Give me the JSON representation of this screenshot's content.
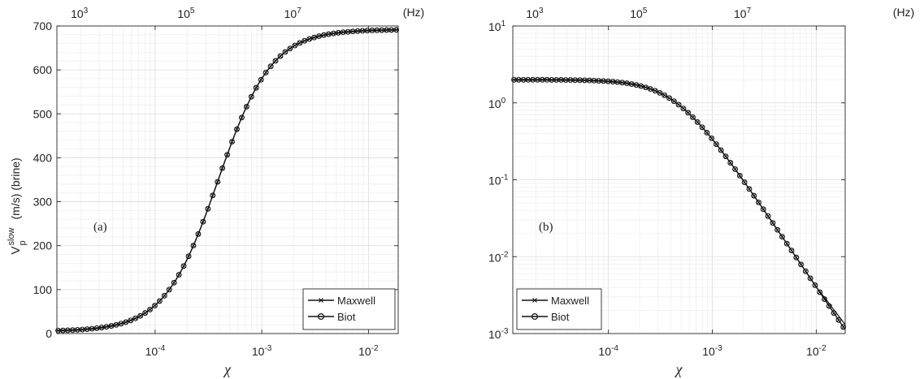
{
  "chart_data": [
    {
      "type": "line",
      "panel_label": "(a)",
      "top_axis_unit": "(Hz)",
      "top_ticks": [
        {
          "base": "10",
          "exp": "3",
          "value": 1.95e-05
        },
        {
          "base": "10",
          "exp": "5",
          "value": 0.000195
        },
        {
          "base": "10",
          "exp": "7",
          "value": 0.00195
        }
      ],
      "xlabel": "χ",
      "x_scale": "log",
      "xlim": [
        1.2e-05,
        0.019
      ],
      "x_ticks": [
        {
          "base": "10",
          "exp": "-4",
          "value": 0.0001
        },
        {
          "base": "10",
          "exp": "-3",
          "value": 0.001
        },
        {
          "base": "10",
          "exp": "-2",
          "value": 0.01
        }
      ],
      "ylabel": {
        "main": "V",
        "sup": "slow",
        "sub": "p",
        "rest": "(m/s) (brine)"
      },
      "y_scale": "linear",
      "ylim": [
        0,
        700
      ],
      "y_ticks": [
        "0",
        "100",
        "200",
        "300",
        "400",
        "500",
        "600",
        "700"
      ],
      "grid": true,
      "legend_placement": "bottom-right",
      "curve_model": {
        "kind": "sigmoid",
        "low": 5,
        "high": 692,
        "center_log10_x": -3.41,
        "width": 0.25
      },
      "series": [
        {
          "name": "Maxwell",
          "marker": "x"
        },
        {
          "name": "Biot",
          "marker": "o"
        }
      ]
    },
    {
      "type": "line",
      "panel_label": "(b)",
      "top_axis_unit": "(Hz)",
      "top_ticks": [
        {
          "base": "10",
          "exp": "3",
          "value": 1.95e-05
        },
        {
          "base": "10",
          "exp": "5",
          "value": 0.000195
        },
        {
          "base": "10",
          "exp": "7",
          "value": 0.00195
        }
      ],
      "xlabel": "χ",
      "x_scale": "log",
      "xlim": [
        1.2e-05,
        0.019
      ],
      "x_ticks": [
        {
          "base": "10",
          "exp": "-4",
          "value": 0.0001
        },
        {
          "base": "10",
          "exp": "-3",
          "value": 0.001
        },
        {
          "base": "10",
          "exp": "-2",
          "value": 0.01
        }
      ],
      "ylabel": null,
      "y_scale": "log",
      "ylim": [
        0.001,
        10
      ],
      "y_ticks": [
        {
          "base": "10",
          "exp": "1",
          "value": 10
        },
        {
          "base": "10",
          "exp": "0",
          "value": 1
        },
        {
          "base": "10",
          "exp": "-1",
          "value": 0.1
        },
        {
          "base": "10",
          "exp": "-2",
          "value": 0.01
        },
        {
          "base": "10",
          "exp": "-3",
          "value": 0.001
        }
      ],
      "grid": true,
      "legend_placement": "bottom-left",
      "curve_model": {
        "kind": "rolloff",
        "plateau": 2.0,
        "corner_x": 0.00045,
        "slope": -2
      },
      "series": [
        {
          "name": "Maxwell",
          "marker": "x"
        },
        {
          "name": "Biot",
          "marker": "o"
        }
      ]
    }
  ]
}
